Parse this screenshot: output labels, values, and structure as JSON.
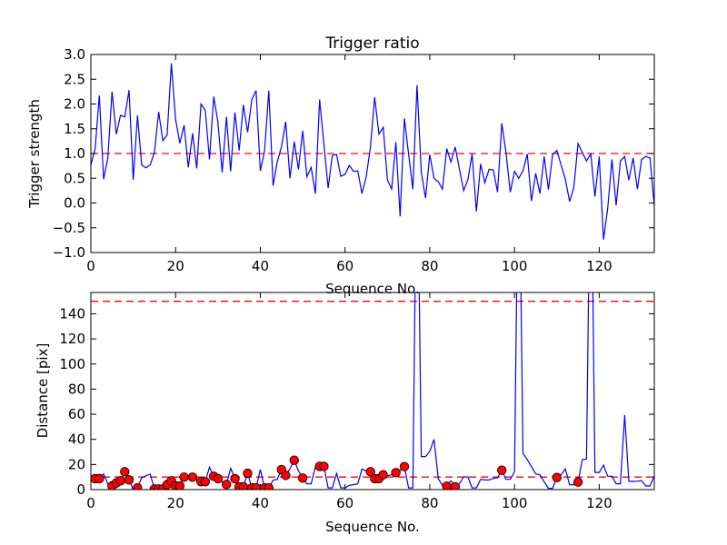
{
  "chart_data": [
    {
      "type": "line",
      "title": "Trigger ratio",
      "xlabel": "Sequence No.",
      "ylabel": "Trigger strength",
      "xlim": [
        0,
        133
      ],
      "ylim": [
        -1.0,
        3.0
      ],
      "xticks": [
        0,
        20,
        40,
        60,
        80,
        100,
        120
      ],
      "yticks": [
        -1.0,
        -0.5,
        0.0,
        0.5,
        1.0,
        1.5,
        2.0,
        2.5,
        3.0
      ],
      "threshold": 1.0,
      "grid": false,
      "series": [
        {
          "name": "trigger strength",
          "color": "#0000ff",
          "values": [
            0.77,
            1.1,
            2.17,
            0.48,
            0.9,
            2.25,
            1.39,
            1.77,
            1.74,
            2.28,
            0.47,
            1.77,
            0.77,
            0.71,
            0.77,
            1.02,
            1.84,
            1.26,
            1.37,
            2.82,
            1.69,
            1.21,
            1.57,
            0.72,
            1.41,
            0.7,
            2.0,
            1.87,
            0.88,
            2.15,
            1.63,
            0.62,
            1.74,
            0.64,
            1.83,
            1.06,
            1.98,
            1.43,
            2.09,
            2.27,
            0.65,
            1.05,
            2.27,
            0.35,
            0.83,
            1.14,
            1.64,
            0.5,
            1.24,
            0.68,
            1.46,
            0.53,
            0.72,
            0.19,
            2.09,
            1.2,
            0.3,
            0.96,
            0.98,
            0.54,
            0.58,
            0.76,
            0.64,
            0.65,
            0.19,
            0.53,
            1.14,
            2.14,
            1.39,
            1.53,
            0.47,
            0.28,
            1.23,
            -0.27,
            1.71,
            0.99,
            0.28,
            2.38,
            0.62,
            0.1,
            0.98,
            0.5,
            0.43,
            0.28,
            1.1,
            0.83,
            1.13,
            0.68,
            0.25,
            0.47,
            0.99,
            -0.17,
            0.79,
            0.41,
            0.68,
            0.67,
            0.22,
            1.61,
            1.02,
            0.22,
            0.64,
            0.5,
            0.65,
            0.99,
            0.04,
            0.6,
            0.19,
            0.94,
            0.27,
            0.98,
            1.06,
            0.77,
            0.48,
            0.03,
            0.31,
            1.2,
            1.02,
            0.85,
            0.99,
            0.13,
            0.94,
            -0.74,
            -0.11,
            0.88,
            -0.05,
            0.85,
            0.94,
            0.46,
            0.91,
            0.28,
            0.88,
            0.94,
            0.91,
            -0.07
          ]
        }
      ]
    },
    {
      "type": "line",
      "title": "",
      "xlabel": "Sequence No.",
      "ylabel": "Distance [pix]",
      "xlim": [
        0,
        133
      ],
      "ylim": [
        0,
        157
      ],
      "xticks": [
        0,
        20,
        40,
        60,
        80,
        100,
        120
      ],
      "yticks": [
        0,
        20,
        40,
        60,
        80,
        100,
        120,
        140
      ],
      "thresholds": [
        150,
        10
      ],
      "grid": false,
      "series": [
        {
          "name": "distance",
          "color": "#0000ff",
          "values": [
            10.6,
            8.7,
            8.7,
            12.5,
            4.6,
            2.9,
            5.3,
            7,
            14.2,
            7.7,
            0,
            1.4,
            9.4,
            11,
            12.3,
            0.5,
            0.5,
            0.5,
            3.9,
            7,
            2.9,
            2.9,
            9.9,
            9.9,
            9.9,
            8.2,
            6.3,
            6.3,
            17.8,
            10.6,
            8.7,
            6.3,
            4.1,
            17.1,
            8.7,
            2.2,
            2.2,
            13,
            1.4,
            1.4,
            16,
            1.4,
            1.4,
            7.5,
            8.2,
            15.9,
            11.3,
            16.6,
            23.4,
            15,
            9.2,
            4.6,
            4.6,
            18.3,
            18.5,
            18.5,
            1.4,
            1.4,
            12.8,
            1.4,
            1.4,
            3.4,
            3.9,
            4.6,
            16.4,
            14.9,
            14.2,
            8.7,
            8.7,
            11.8,
            11,
            11.8,
            13.5,
            14.9,
            18.3,
            1.4,
            1.4,
            300,
            26.3,
            26.3,
            30.4,
            40,
            8.7,
            3.4,
            2.7,
            7,
            2.2,
            4.6,
            10.1,
            10.1,
            1.4,
            1.4,
            8.2,
            7.7,
            7.7,
            8.9,
            9.4,
            15.4,
            8.2,
            8.2,
            14.2,
            300,
            28.7,
            23.9,
            18.3,
            12.5,
            11.8,
            6.3,
            1,
            1,
            9.6,
            11.8,
            16.6,
            3.9,
            3.9,
            6,
            23.9,
            24.3,
            300,
            13.7,
            13.7,
            19.5,
            10.6,
            10.6,
            4.6,
            4.6,
            59.3,
            6.5,
            6.5,
            6.7,
            7,
            2.9,
            2.9,
            11
          ]
        },
        {
          "name": "flagged points",
          "color": "#ff0000",
          "marker": "circle",
          "indices": [
            1,
            2,
            5,
            6,
            7,
            8,
            9,
            11,
            15,
            16,
            17,
            18,
            19,
            20,
            21,
            22,
            24,
            26,
            27,
            29,
            30,
            32,
            34,
            35,
            36,
            37,
            38,
            39,
            41,
            42,
            45,
            46,
            48,
            50,
            54,
            55,
            66,
            67,
            68,
            69,
            72,
            74,
            84,
            86,
            97,
            110,
            115
          ]
        }
      ]
    }
  ]
}
